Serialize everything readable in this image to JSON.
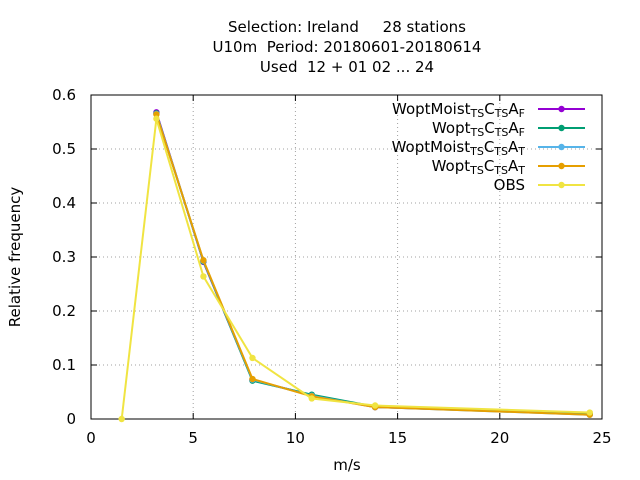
{
  "chart_data": {
    "type": "line",
    "title": "Selection: Ireland     28 stations",
    "subtitle": "U10m  Period: 20180601-20180614",
    "subtitle2": "Used  12 + 01 02 ... 24",
    "xlabel": "m/s",
    "ylabel": "Relative frequency",
    "xlim": [
      0,
      25
    ],
    "ylim": [
      0,
      0.6
    ],
    "xticks": [
      "0",
      "5",
      "10",
      "15",
      "20",
      "25"
    ],
    "yticks": [
      "0",
      "0.1",
      "0.2",
      "0.3",
      "0.4",
      "0.5",
      "0.6"
    ],
    "grid": true,
    "legend_position": "top-right",
    "series": [
      {
        "name": "WoptMoist",
        "sub1": "TS",
        "mid": "C",
        "sub2": "TS",
        "end": "A",
        "sub3": "F",
        "color": "#9400d3",
        "x": [
          3.2,
          5.5,
          7.9,
          10.8,
          13.9,
          24.4
        ],
        "y": [
          0.568,
          0.291,
          0.072,
          0.044,
          0.022,
          0.009
        ]
      },
      {
        "name": "Wopt",
        "sub1": "TS",
        "mid": "C",
        "sub2": "TS",
        "end": "A",
        "sub3": "F",
        "color": "#009e73",
        "x": [
          3.2,
          5.5,
          7.9,
          10.8,
          13.9,
          24.4
        ],
        "y": [
          0.566,
          0.292,
          0.071,
          0.045,
          0.023,
          0.009
        ]
      },
      {
        "name": "WoptMoist",
        "sub1": "TS",
        "mid": "C",
        "sub2": "TS",
        "end": "A",
        "sub3": "T",
        "color": "#56b4e9",
        "x": [
          3.2,
          5.5,
          7.9,
          10.8,
          13.9,
          24.4
        ],
        "y": [
          0.565,
          0.293,
          0.073,
          0.043,
          0.022,
          0.008
        ]
      },
      {
        "name": "Wopt",
        "sub1": "TS",
        "mid": "C",
        "sub2": "TS",
        "end": "A",
        "sub3": "T",
        "color": "#e69f00",
        "x": [
          3.2,
          5.5,
          7.9,
          10.8,
          13.9,
          24.4
        ],
        "y": [
          0.564,
          0.294,
          0.074,
          0.042,
          0.022,
          0.008
        ]
      },
      {
        "name": "OBS",
        "color": "#f0e442",
        "x": [
          1.5,
          3.2,
          5.5,
          7.9,
          10.8,
          13.9,
          24.4
        ],
        "y": [
          0.0,
          0.556,
          0.264,
          0.113,
          0.038,
          0.025,
          0.012
        ]
      }
    ]
  }
}
